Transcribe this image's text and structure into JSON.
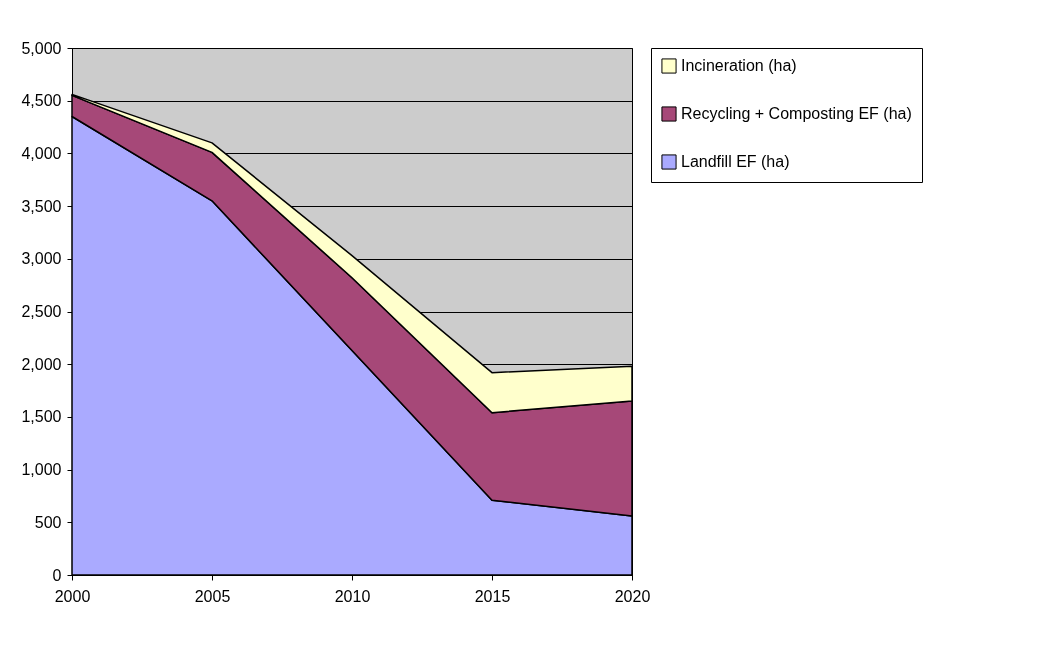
{
  "chart_data": {
    "type": "area",
    "stacked": true,
    "x": [
      2000,
      2005,
      2010,
      2015,
      2020
    ],
    "series": [
      {
        "name": "Landfill EF (ha)",
        "color": "#aaaaff",
        "values": [
          4350,
          3550,
          2130,
          710,
          560
        ]
      },
      {
        "name": "Recycling + Composting EF (ha)",
        "color": "#a64878",
        "values": [
          200,
          460,
          690,
          830,
          1090
        ]
      },
      {
        "name": "Incineration (ha)",
        "color": "#ffffcc",
        "values": [
          10,
          90,
          210,
          380,
          330
        ]
      }
    ],
    "xlim": [
      2000,
      2020
    ],
    "xticks": [
      2000,
      2005,
      2010,
      2015,
      2020
    ],
    "ylim": [
      0,
      5000
    ],
    "yticks": [
      0,
      500,
      {
        "value": 1000,
        "label": "1,000"
      },
      {
        "value": 1500,
        "label": "1,500"
      },
      {
        "value": 2000,
        "label": "2,000"
      },
      {
        "value": 2500,
        "label": "2,500"
      },
      {
        "value": 3000,
        "label": "3,000"
      },
      {
        "value": 3500,
        "label": "3,500"
      },
      {
        "value": 4000,
        "label": "4,000"
      },
      {
        "value": 4500,
        "label": "4,500"
      },
      {
        "value": 5000,
        "label": "5,000"
      }
    ],
    "grid": "y",
    "legend": "right"
  }
}
